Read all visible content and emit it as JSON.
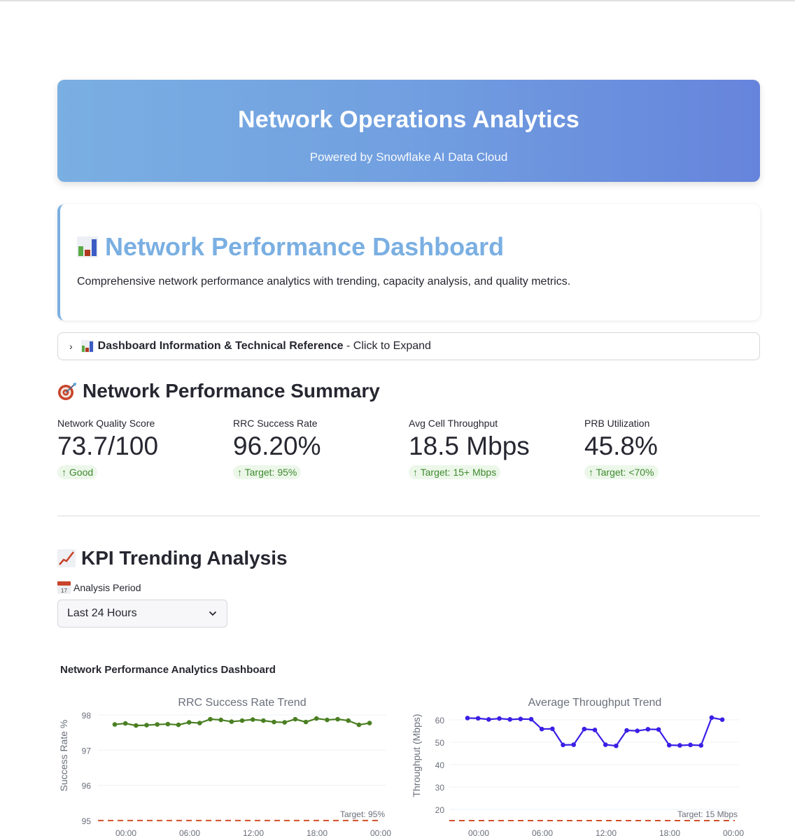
{
  "header": {
    "title": "Network Operations Analytics",
    "subtitle": "Powered by Snowflake AI Data Cloud",
    "gradient_start": "#7aafe2",
    "gradient_end": "#6684dc"
  },
  "intro": {
    "icon": "bar-chart-icon",
    "title": "Network Performance Dashboard",
    "description": "Comprehensive network performance analytics with trending, capacity analysis, and quality metrics."
  },
  "expander": {
    "icon": "bar-chart-icon",
    "title": "Dashboard Information & Technical Reference",
    "suffix": " - Click to Expand"
  },
  "summary": {
    "icon": "target-icon",
    "title": "Network Performance Summary",
    "metrics": [
      {
        "label": "Network Quality Score",
        "value": "73.7/100",
        "delta": "↑ Good"
      },
      {
        "label": "RRC Success Rate",
        "value": "96.20%",
        "delta": "↑ Target: 95%"
      },
      {
        "label": "Avg Cell Throughput",
        "value": "18.5 Mbps",
        "delta": "↑ Target: 15+ Mbps"
      },
      {
        "label": "PRB Utilization",
        "value": "45.8%",
        "delta": "↑ Target: <70%"
      }
    ]
  },
  "trending": {
    "icon": "chart-increasing-icon",
    "title": "KPI Trending Analysis",
    "period_label": "Analysis Period",
    "period_value": "Last 24 Hours",
    "dashboard_title": "Network Performance Analytics Dashboard"
  },
  "chart_data": [
    {
      "type": "line",
      "title": "RRC Success Rate Trend",
      "xlabel": "",
      "ylabel": "Success Rate %",
      "x_ticks": [
        "00:00",
        "06:00",
        "12:00",
        "18:00",
        "00:00"
      ],
      "y_ticks": [
        95,
        96,
        97,
        98
      ],
      "ylim": [
        95,
        98
      ],
      "grid": true,
      "color": "#4a7f22",
      "values": [
        97.73,
        97.76,
        97.7,
        97.71,
        97.73,
        97.74,
        97.72,
        97.79,
        97.77,
        97.88,
        97.86,
        97.81,
        97.84,
        97.87,
        97.84,
        97.8,
        97.79,
        97.88,
        97.8,
        97.9,
        97.86,
        97.88,
        97.84,
        97.72,
        97.77
      ],
      "target": {
        "value": 95,
        "label": "Target: 95%",
        "color": "#d0502a"
      }
    },
    {
      "type": "line",
      "title": "Average Throughput Trend",
      "xlabel": "",
      "ylabel": "Throughput (Mbps)",
      "x_ticks": [
        "00:00",
        "06:00",
        "12:00",
        "18:00",
        "00:00"
      ],
      "y_ticks": [
        20,
        30,
        40,
        50,
        60
      ],
      "ylim": [
        15,
        62
      ],
      "grid": true,
      "color": "#3a1fe6",
      "values": [
        60.8,
        60.7,
        60.2,
        60.6,
        60.2,
        60.4,
        60.3,
        55.9,
        56.0,
        48.8,
        48.9,
        55.9,
        55.5,
        48.9,
        48.4,
        55.3,
        55.1,
        55.8,
        55.7,
        48.7,
        48.6,
        48.8,
        48.6,
        61.0,
        60.1
      ],
      "target": {
        "value": 15,
        "label": "Target: 15 Mbps",
        "color": "#d0502a"
      }
    }
  ]
}
